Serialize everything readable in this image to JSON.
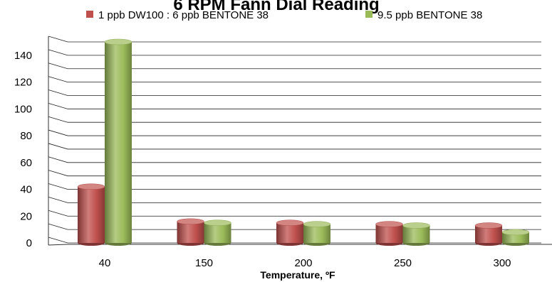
{
  "chart_data": {
    "type": "bar",
    "style": "3d-cylinder",
    "title": "6 RPM Fann Dial Reading",
    "xlabel": "Temperature, ºF",
    "ylabel": "",
    "categories": [
      "40",
      "150",
      "200",
      "250",
      "300"
    ],
    "series": [
      {
        "name": "1 ppb DW100 : 6 ppb BENTONE 38",
        "color": "#C0504D",
        "values": [
          42,
          16,
          15,
          14,
          13
        ]
      },
      {
        "name": "9.5 ppb BENTONE 38",
        "color": "#9BBB59",
        "values": [
          150,
          15,
          14,
          13,
          8
        ]
      }
    ],
    "yticks": [
      "0",
      "20",
      "40",
      "60",
      "80",
      "100",
      "120",
      "140"
    ],
    "ylim": [
      0,
      150
    ],
    "grid": true,
    "legend": "top"
  }
}
